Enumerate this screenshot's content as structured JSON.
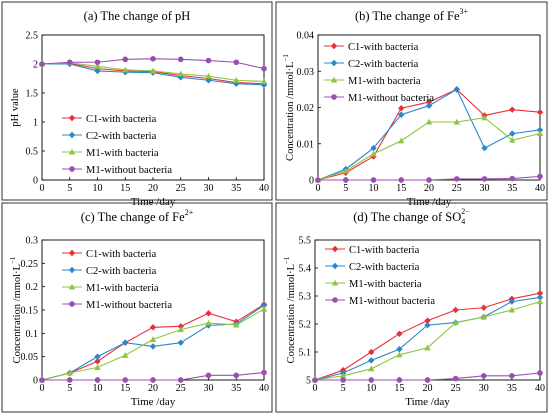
{
  "chart_data": [
    {
      "type": "line",
      "title": "(a) The change of pH",
      "xlabel": "Time /day",
      "ylabel": "pH value",
      "xlim": [
        0,
        40
      ],
      "ylim": [
        0,
        2.5
      ],
      "x_ticks": [
        0,
        5,
        10,
        15,
        20,
        25,
        30,
        35,
        40
      ],
      "y_ticks": [
        0,
        0.5,
        1,
        1.5,
        2,
        2.5
      ],
      "y_tick_labels": [
        "0",
        "0.5",
        "1",
        "1.5",
        "2",
        "2.5"
      ],
      "x": [
        0,
        5,
        10,
        15,
        20,
        25,
        30,
        35,
        40
      ],
      "legend_position": "bottom-left",
      "series": [
        {
          "name": "C1-with bacteria",
          "color": "#e8303a",
          "marker": "diamond",
          "values": [
            2.0,
            2.01,
            1.92,
            1.88,
            1.87,
            1.8,
            1.75,
            1.68,
            1.66
          ]
        },
        {
          "name": "C2-with bacteria",
          "color": "#2e86c8",
          "marker": "diamond",
          "values": [
            2.0,
            2.0,
            1.88,
            1.86,
            1.85,
            1.77,
            1.72,
            1.66,
            1.64
          ]
        },
        {
          "name": "M1-with bacteria",
          "color": "#8cc63f",
          "marker": "triangle",
          "values": [
            2.0,
            2.02,
            1.96,
            1.9,
            1.88,
            1.83,
            1.79,
            1.72,
            1.7
          ]
        },
        {
          "name": "M1-without bacteria",
          "color": "#9a4fb0",
          "marker": "circle",
          "values": [
            2.0,
            2.03,
            2.03,
            2.08,
            2.09,
            2.08,
            2.06,
            2.03,
            1.92
          ]
        }
      ]
    },
    {
      "type": "line",
      "title": "(b) The change of Fe",
      "title_sup": "3+",
      "xlabel": "Time /day",
      "ylabel": "Concentration /mmol·L",
      "ylabel_sup": "−1",
      "xlim": [
        0,
        40
      ],
      "ylim": [
        0,
        0.04
      ],
      "x_ticks": [
        0,
        5,
        10,
        15,
        20,
        25,
        30,
        35,
        40
      ],
      "y_ticks": [
        0,
        0.01,
        0.02,
        0.03,
        0.04
      ],
      "y_tick_labels": [
        "0",
        "0.01",
        "0.02",
        "0.03",
        "0.04"
      ],
      "x": [
        0,
        5,
        10,
        15,
        20,
        25,
        30,
        35,
        40
      ],
      "legend_position": "top-right",
      "series": [
        {
          "name": "C1-with bacteria",
          "color": "#e8303a",
          "marker": "diamond",
          "values": [
            0,
            0.002,
            0.0065,
            0.0198,
            0.0215,
            0.025,
            0.0178,
            0.0194,
            0.0187
          ]
        },
        {
          "name": "C2-with bacteria",
          "color": "#2e86c8",
          "marker": "diamond",
          "values": [
            0,
            0.003,
            0.0088,
            0.018,
            0.0205,
            0.025,
            0.0088,
            0.0128,
            0.0138
          ]
        },
        {
          "name": "M1-with bacteria",
          "color": "#8cc63f",
          "marker": "triangle",
          "values": [
            0,
            0.0025,
            0.0072,
            0.0108,
            0.016,
            0.016,
            0.0172,
            0.011,
            0.0128
          ]
        },
        {
          "name": "M1-without bacteria",
          "color": "#9a4fb0",
          "marker": "circle",
          "values": [
            0,
            0,
            0,
            0,
            0,
            0.0003,
            0.0003,
            0.0004,
            0.001
          ]
        }
      ]
    },
    {
      "type": "line",
      "title": "(c) The change of Fe",
      "title_sup": "2+",
      "xlabel": "Time /day",
      "ylabel": "Concentration /mmol·L",
      "ylabel_sup": "−1",
      "xlim": [
        0,
        40
      ],
      "ylim": [
        0,
        0.3
      ],
      "x_ticks": [
        0,
        5,
        10,
        15,
        20,
        25,
        30,
        35,
        40
      ],
      "y_ticks": [
        0,
        0.05,
        0.1,
        0.15,
        0.2,
        0.25,
        0.3
      ],
      "y_tick_labels": [
        "0",
        "0.05",
        "0.1",
        "0.15",
        "0.2",
        "0.25",
        "0.3"
      ],
      "x": [
        0,
        5,
        10,
        15,
        20,
        25,
        30,
        35,
        40
      ],
      "legend_position": "top-left",
      "series": [
        {
          "name": "C1-with bacteria",
          "color": "#e8303a",
          "marker": "diamond",
          "values": [
            0,
            0.015,
            0.04,
            0.08,
            0.113,
            0.115,
            0.143,
            0.125,
            0.162
          ]
        },
        {
          "name": "C2-with bacteria",
          "color": "#2e86c8",
          "marker": "diamond",
          "values": [
            0,
            0.015,
            0.05,
            0.08,
            0.072,
            0.08,
            0.117,
            0.12,
            0.16
          ]
        },
        {
          "name": "M1-with bacteria",
          "color": "#8cc63f",
          "marker": "triangle",
          "values": [
            0,
            0.015,
            0.027,
            0.053,
            0.087,
            0.108,
            0.122,
            0.118,
            0.152
          ]
        },
        {
          "name": "M1-without bacteria",
          "color": "#9a4fb0",
          "marker": "circle",
          "values": [
            0,
            0,
            0,
            0,
            0,
            0,
            0.01,
            0.01,
            0.016
          ]
        }
      ]
    },
    {
      "type": "line",
      "title": "(d) The change of SO",
      "title_sub": "4",
      "title_sup": "2−",
      "xlabel": "Time /day",
      "ylabel": "Concentration /mmol·L",
      "ylabel_sup": "−1",
      "xlim": [
        0,
        40
      ],
      "ylim": [
        5,
        5.5
      ],
      "x_ticks": [
        0,
        5,
        10,
        15,
        20,
        25,
        30,
        35,
        40
      ],
      "y_ticks": [
        5,
        5.1,
        5.2,
        5.3,
        5.4,
        5.5
      ],
      "y_tick_labels": [
        "5",
        "5.1",
        "5.2",
        "5.3",
        "5.4",
        "5.5"
      ],
      "x": [
        0,
        5,
        10,
        15,
        20,
        25,
        30,
        35,
        40
      ],
      "legend_position": "top-left",
      "series": [
        {
          "name": "C1-with bacteria",
          "color": "#e8303a",
          "marker": "diamond",
          "values": [
            5.0,
            5.035,
            5.1,
            5.165,
            5.212,
            5.25,
            5.258,
            5.29,
            5.31
          ]
        },
        {
          "name": "C2-with bacteria",
          "color": "#2e86c8",
          "marker": "diamond",
          "values": [
            5.0,
            5.025,
            5.07,
            5.11,
            5.196,
            5.205,
            5.225,
            5.28,
            5.295
          ]
        },
        {
          "name": "M1-with bacteria",
          "color": "#8cc63f",
          "marker": "triangle",
          "values": [
            5.0,
            5.015,
            5.04,
            5.09,
            5.115,
            5.205,
            5.225,
            5.25,
            5.28
          ]
        },
        {
          "name": "M1-without bacteria",
          "color": "#9a4fb0",
          "marker": "circle",
          "values": [
            5.0,
            5.0,
            5.0,
            5.0,
            5.0,
            5.005,
            5.015,
            5.015,
            5.025
          ]
        }
      ]
    }
  ]
}
